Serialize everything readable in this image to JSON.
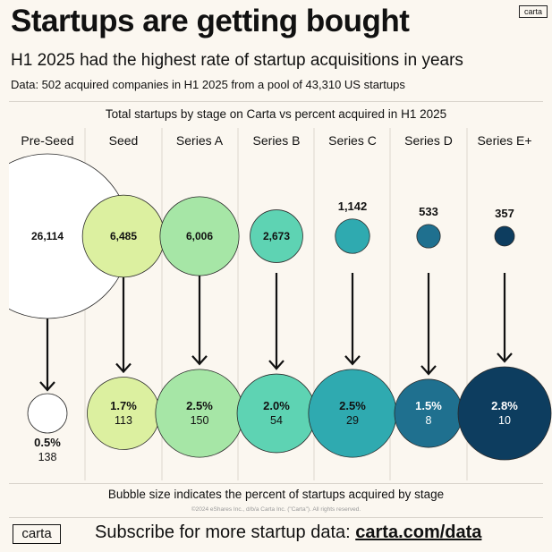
{
  "logo_small": "carta",
  "title": "Startups are getting bought",
  "subtitle": "H1 2025 had the highest rate of startup acquisitions in years",
  "data_note": "Data: 502 acquired companies in H1 2025 from a pool of 43,310 US startups",
  "chart_data": {
    "type": "bubble",
    "title": "Total startups by stage on Carta vs percent acquired in H1 2025",
    "categories": [
      "Pre-Seed",
      "Seed",
      "Series A",
      "Series B",
      "Series C",
      "Series D",
      "Series E+"
    ],
    "series": [
      {
        "name": "Total startups",
        "values": [
          26114,
          6485,
          6006,
          2673,
          1142,
          533,
          357
        ],
        "labels": [
          "26,114",
          "6,485",
          "6,006",
          "2,673",
          "1,142",
          "533",
          "357"
        ]
      },
      {
        "name": "Percent acquired",
        "values": [
          0.5,
          1.7,
          2.5,
          2.0,
          2.5,
          1.5,
          2.8
        ],
        "labels": [
          "0.5%",
          "1.7%",
          "2.5%",
          "2.0%",
          "2.5%",
          "1.5%",
          "2.8%"
        ]
      },
      {
        "name": "Acquired companies",
        "values": [
          138,
          113,
          150,
          54,
          29,
          8,
          10
        ]
      }
    ],
    "colors": [
      "#ffffff",
      "#dcf0a0",
      "#a6e6a6",
      "#5ed3b3",
      "#2faab0",
      "#1f708f",
      "#0d3d5f"
    ],
    "note": "Bubble size indicates the percent of startups acquired by stage"
  },
  "copyright": "©2024 eShares Inc., d/b/a Carta Inc. (\"Carta\"). All rights reserved.",
  "logo_bottom": "carta",
  "cta": {
    "text": "Subscribe for more startup data: ",
    "link": "carta.com/data"
  }
}
